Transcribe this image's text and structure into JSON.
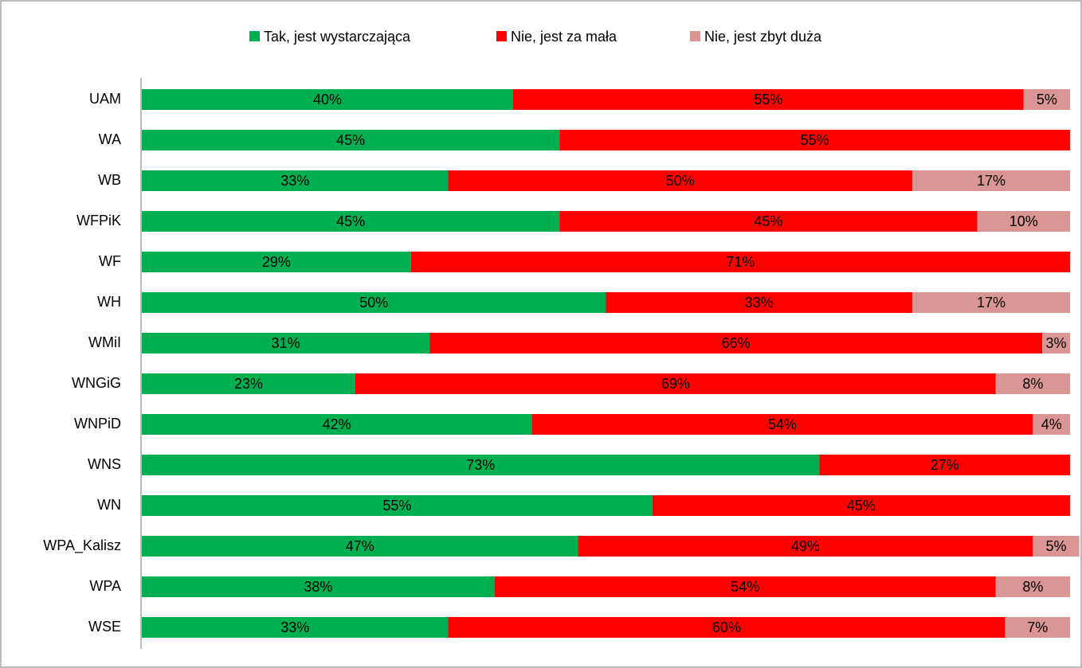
{
  "chart_data": {
    "type": "stacked-bar-horizontal",
    "categories": [
      "UAM",
      "WA",
      "WB",
      "WFPiK",
      "WF",
      "WH",
      "WMiI",
      "WNGiG",
      "WNPiD",
      "WNS",
      "WN",
      "WPA_Kalisz",
      "WPA",
      "WSE"
    ],
    "series": [
      {
        "name": "Tak, jest wystarczająca",
        "color": "#00b050",
        "values": [
          40,
          45,
          33,
          45,
          29,
          50,
          31,
          23,
          42,
          73,
          55,
          47,
          38,
          33
        ],
        "value_labels": [
          "40%",
          "45%",
          "33%",
          "45%",
          "29%",
          "50%",
          "31%",
          "23%",
          "42%",
          "73%",
          "55%",
          "47%",
          "38%",
          "33%"
        ]
      },
      {
        "name": "Nie, jest za mała",
        "color": "#ff0000",
        "values": [
          55,
          55,
          50,
          45,
          71,
          33,
          66,
          69,
          54,
          27,
          45,
          49,
          54,
          60
        ],
        "value_labels": [
          "55%",
          "55%",
          "50%",
          "45%",
          "71%",
          "33%",
          "66%",
          "69%",
          "54%",
          "27%",
          "45%",
          "49%",
          "54%",
          "60%"
        ]
      },
      {
        "name": "Nie, jest zbyt duża",
        "color": "#da9694",
        "values": [
          5,
          null,
          17,
          10,
          null,
          17,
          3,
          8,
          4,
          null,
          null,
          5,
          8,
          7
        ],
        "value_labels": [
          "5%",
          null,
          "17%",
          "10%",
          null,
          "17%",
          "3%",
          "8%",
          "4%",
          null,
          null,
          "5%",
          "8%",
          "7%"
        ]
      }
    ],
    "legend": "top"
  }
}
